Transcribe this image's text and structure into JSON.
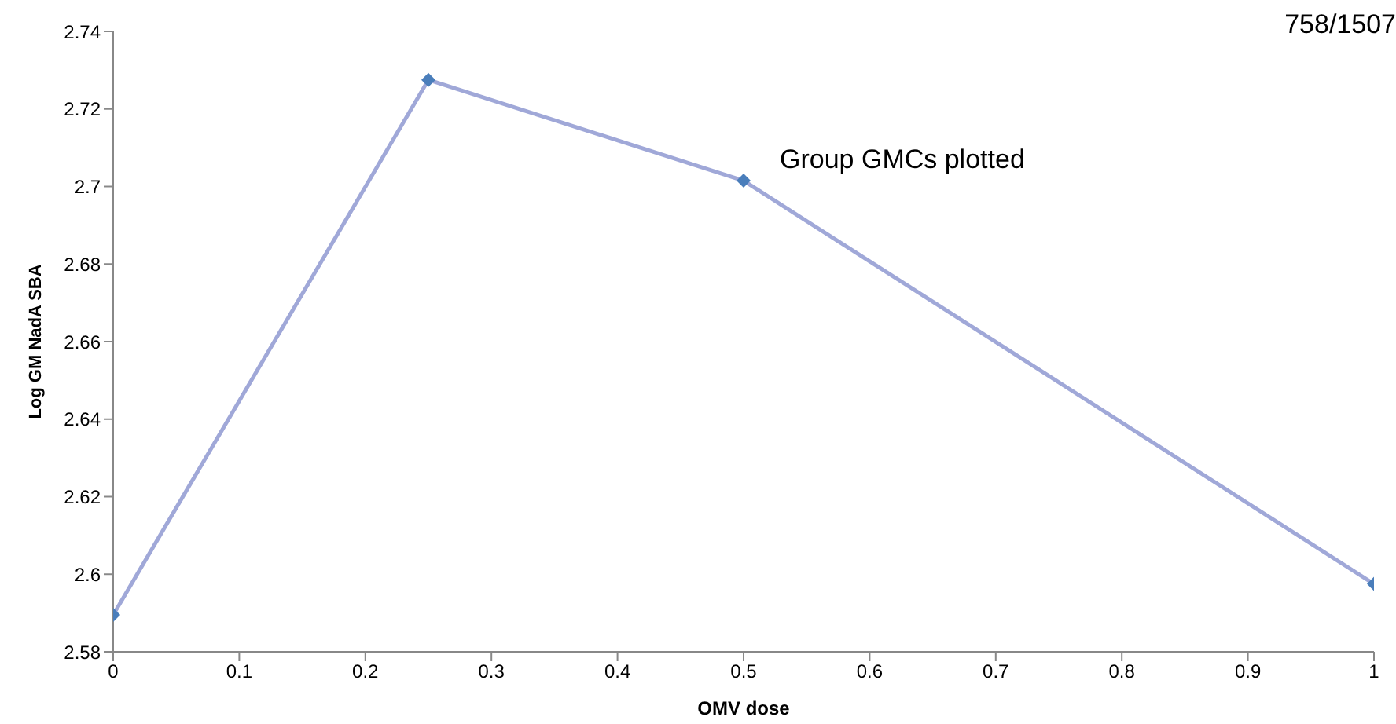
{
  "chart_data": {
    "type": "line",
    "xlabel": "OMV dose",
    "ylabel": "Log GM NadA SBA",
    "x": [
      0,
      0.25,
      0.5,
      1
    ],
    "series": [
      {
        "color": "#a0a8d8",
        "colors": [
          "#4a7ebb",
          "#4a7ebb",
          "#4a7ebb",
          "#4a7ebb"
        ],
        "values": [
          2.5895,
          2.7275,
          2.7015,
          2.5975
        ]
      }
    ],
    "xlim": [
      0,
      1
    ],
    "xticks": [
      0,
      0.1,
      0.2,
      0.3,
      0.4,
      0.5,
      0.6,
      0.7,
      0.8,
      0.9,
      1
    ],
    "ylim": [
      2.58,
      2.74
    ],
    "yticks": [
      2.58,
      2.6,
      2.62,
      2.64,
      2.66,
      2.68,
      2.7,
      2.72,
      2.74
    ],
    "marker": "diamond",
    "line_style": "solid",
    "grid": false,
    "legend": false,
    "annotations": [
      "Group GMCs plotted",
      "758/1507"
    ]
  }
}
